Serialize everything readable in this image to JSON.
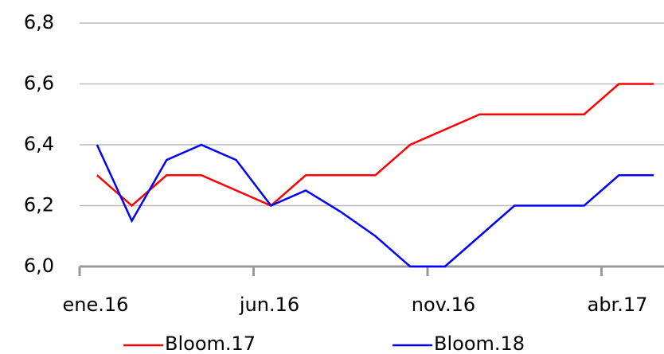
{
  "chart_data": {
    "type": "line",
    "categories": [
      "ene.16",
      null,
      null,
      null,
      null,
      "jun.16",
      null,
      null,
      null,
      null,
      "nov.16",
      null,
      null,
      null,
      null,
      "abr.17",
      null
    ],
    "series": [
      {
        "name": "Bloom.17",
        "color": "#ff0000",
        "values": [
          6.3,
          6.2,
          6.3,
          6.3,
          6.25,
          6.2,
          6.3,
          6.3,
          6.3,
          6.4,
          6.45,
          6.5,
          6.5,
          6.5,
          6.5,
          6.6,
          6.6
        ]
      },
      {
        "name": "Bloom.18",
        "color": "#0000ff",
        "values": [
          6.4,
          6.15,
          6.35,
          6.4,
          6.35,
          6.2,
          6.25,
          6.18,
          6.1,
          6.0,
          6.0,
          6.1,
          6.2,
          6.2,
          6.2,
          6.3,
          6.3
        ]
      }
    ],
    "ylim": [
      6.0,
      6.8
    ],
    "yticks": [
      {
        "value": 6.0,
        "label": "6,0"
      },
      {
        "value": 6.2,
        "label": "6,2"
      },
      {
        "value": 6.4,
        "label": "6,4"
      },
      {
        "value": 6.6,
        "label": "6,6"
      },
      {
        "value": 6.8,
        "label": "6,8"
      }
    ],
    "grid": true,
    "legend": "bottom"
  }
}
